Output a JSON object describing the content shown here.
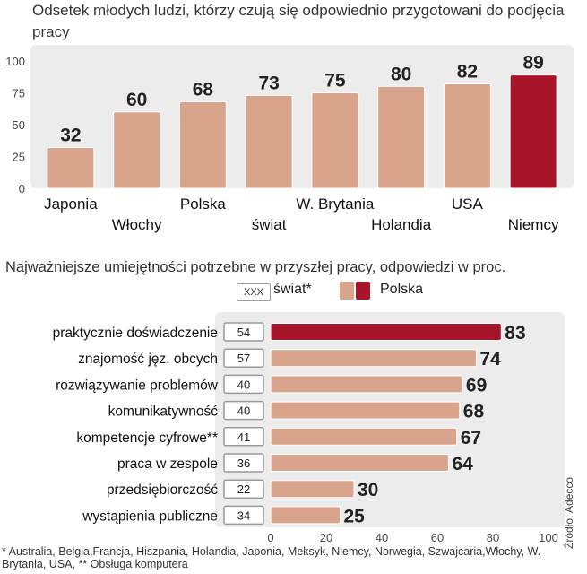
{
  "chart_data": [
    {
      "type": "bar",
      "title": "Odsetek młodych ludzi, którzy czują się odpowiednio przygotowani do podjęcia pracy",
      "categories": [
        "Japonia",
        "Włochy",
        "Polska",
        "świat",
        "W. Brytania",
        "Holandia",
        "USA",
        "Niemcy"
      ],
      "values": [
        32,
        60,
        68,
        73,
        75,
        80,
        82,
        89
      ],
      "ylim": [
        0,
        100
      ],
      "yticks": [
        0,
        25,
        50,
        75,
        100
      ],
      "highlight": "Niemcy",
      "colors": {
        "bar": "#d9a48c",
        "highlight": "#a8142a",
        "panel": "#ececec"
      }
    },
    {
      "type": "bar",
      "orientation": "horizontal",
      "title": "Najważniejsze umiejętności potrzebne w przyszłej pracy, odpowiedzi w proc.",
      "categories": [
        "praktycznie doświadczenie",
        "znajomość jęz. obcych",
        "rozwiązywanie problemów",
        "komunikatywność",
        "kompetencje cyfrowe**",
        "praca w zespole",
        "przedsiębiorczość",
        "wystąpienia publiczne"
      ],
      "series": [
        {
          "name": "świat*",
          "values": [
            54,
            57,
            40,
            40,
            41,
            36,
            22,
            34
          ]
        },
        {
          "name": "Polska",
          "values": [
            83,
            74,
            69,
            68,
            67,
            64,
            30,
            25
          ]
        }
      ],
      "xlim": [
        0,
        100
      ],
      "xticks": [
        0,
        20,
        40,
        60,
        80,
        100
      ],
      "highlight": "praktycznie doświadczenie",
      "legend": {
        "box_sample": "XXX",
        "world_label": "świat*",
        "poland_label": "Polska"
      },
      "colors": {
        "bar": "#d9a48c",
        "highlight": "#a8142a",
        "panel": "#ececec"
      }
    }
  ],
  "footnote": "* Australia, Belgia,Francja, Hiszpania, Holandia, Japonia, Meksyk, Niemcy, Norwegia, Szwajcaria,Włochy, W. Brytania, USA, ** Obsługa komputera",
  "source": "Źródło: Adecco"
}
